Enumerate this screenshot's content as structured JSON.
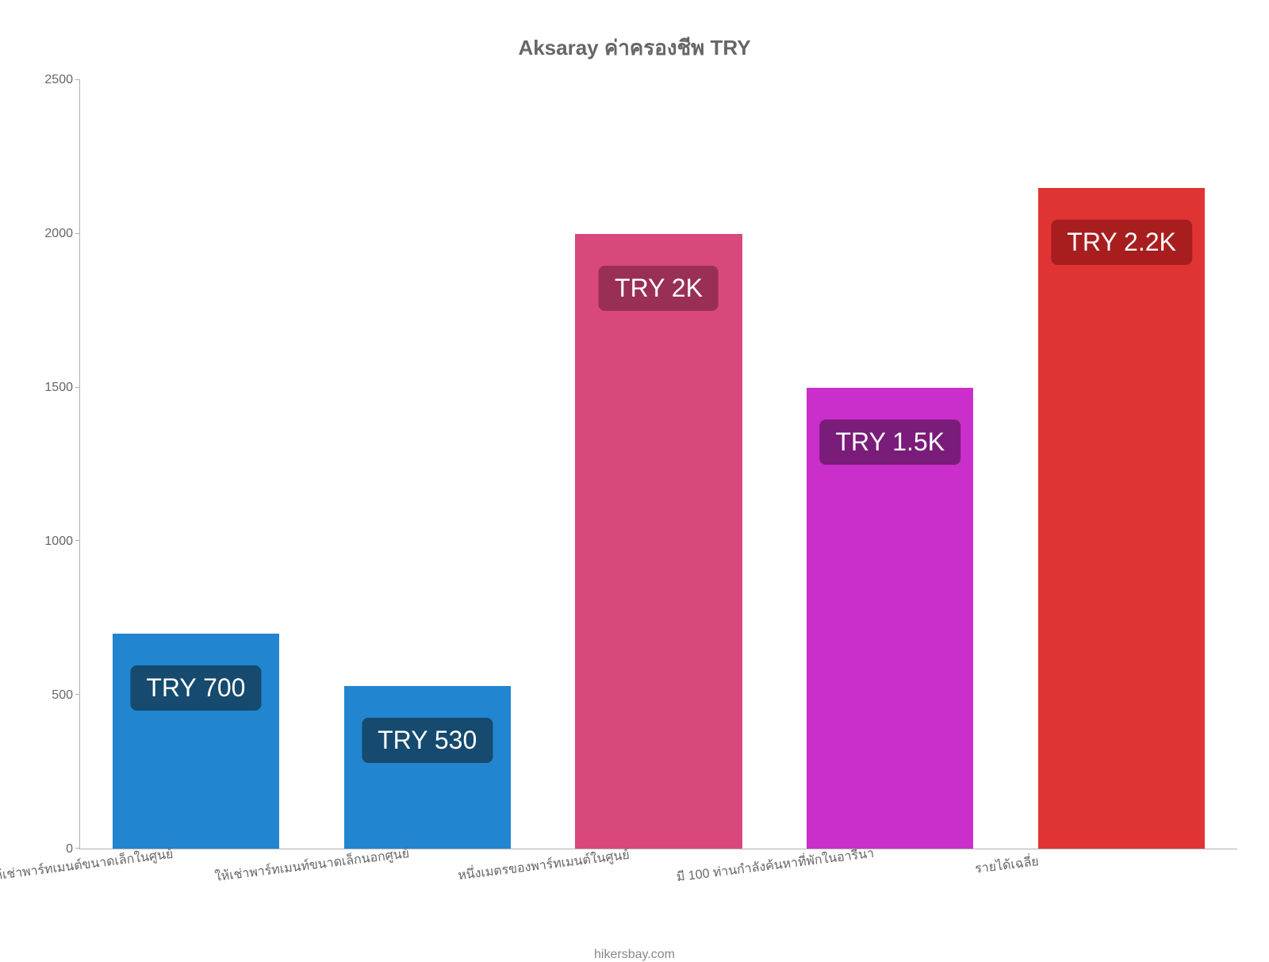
{
  "chart": {
    "type": "bar",
    "title": "Aksaray ค่าครองชีพ TRY",
    "title_fontsize": 26,
    "title_color": "#666666",
    "background_color": "#ffffff",
    "axis_color": "#b0b0b0",
    "tick_label_color": "#666666",
    "tick_label_fontsize": 16,
    "x_label_fontsize": 16,
    "x_label_rotation_deg": -7,
    "value_label_fontsize": 32,
    "value_label_color": "#ffffff",
    "ylim": [
      0,
      2500
    ],
    "ytick_step": 500,
    "yticks": [
      0,
      500,
      1000,
      1500,
      2000,
      2500
    ],
    "bar_width_ratio": 0.72,
    "categories": [
      "ให้เช่าพาร์ทเมนต์ขนาดเล็กในศูนย์",
      "ให้เช่าพาร์ทเมนท์ขนาดเล็กนอกศูนย์",
      "หนึ่งเมตรของพาร์ทเมนต์ในศูนย์",
      "มี 100 ท่านกำลังค้นหาที่พักในอารีนา",
      "รายได้เฉลี่ย"
    ],
    "values": [
      700,
      530,
      2000,
      1500,
      2150
    ],
    "value_labels": [
      "TRY 700",
      "TRY 530",
      "TRY 2K",
      "TRY 1.5K",
      "TRY 2.2K"
    ],
    "bar_colors": [
      "#2185d0",
      "#2185d0",
      "#d9487d",
      "#cb2fcb",
      "#e03434"
    ],
    "badge_colors": [
      "#164a6e",
      "#164a6e",
      "#9a2f56",
      "#7a1c7a",
      "#a81e1e"
    ],
    "credit": "hikersbay.com",
    "credit_color": "#888888",
    "credit_fontsize": 16
  }
}
